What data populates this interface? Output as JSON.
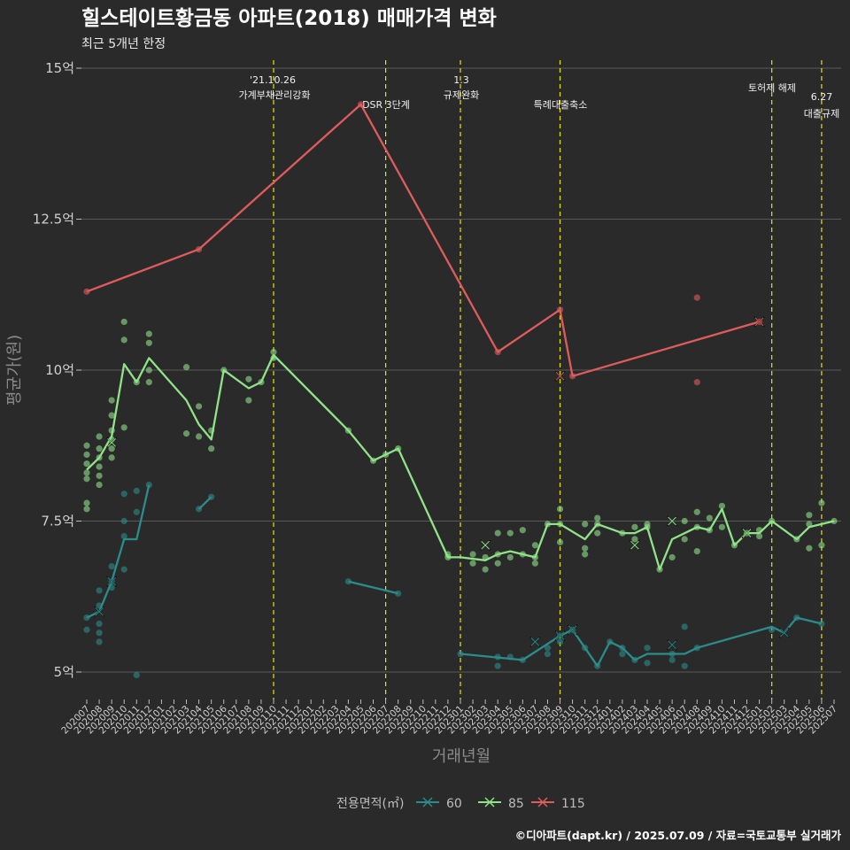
{
  "chart_data": {
    "type": "line",
    "title": "힐스테이트황금동 아파트(2018) 매매가격 변화",
    "subtitle": "최근 5개년 한정",
    "xlabel": "거래년월",
    "ylabel": "평균가(원)",
    "yticks": [
      "5억",
      "7.5억",
      "10억",
      "12.5억",
      "15억"
    ],
    "ylim": [
      4.6,
      15.1
    ],
    "grid": true,
    "legend_position": "bottom",
    "legend_title": "전용면적(㎡)",
    "caption": "©디아파트(dapt.kr) / 2025.07.09 / 자료=국토교통부 실거래가",
    "categories": [
      "202007",
      "202008",
      "202009",
      "202010",
      "202011",
      "202012",
      "202101",
      "202102",
      "202103",
      "202104",
      "202105",
      "202106",
      "202107",
      "202108",
      "202109",
      "202110",
      "202111",
      "202112",
      "202201",
      "202202",
      "202203",
      "202204",
      "202205",
      "202206",
      "202207",
      "202208",
      "202209",
      "202210",
      "202211",
      "202212",
      "202301",
      "202302",
      "202303",
      "202304",
      "202305",
      "202306",
      "202307",
      "202308",
      "202309",
      "202310",
      "202311",
      "202312",
      "202401",
      "202402",
      "202403",
      "202404",
      "202405",
      "202406",
      "202407",
      "202408",
      "202409",
      "202410",
      "202411",
      "202412",
      "202501",
      "202502",
      "202503",
      "202504",
      "202505",
      "202506",
      "202507"
    ],
    "annotations": [
      {
        "x": "202110",
        "lines": [
          "'21.10.26",
          "가계부채관리강화"
        ]
      },
      {
        "x": "202207",
        "lines": [
          "DSR 3단계"
        ]
      },
      {
        "x": "202301",
        "lines": [
          "1.3",
          "규제완화"
        ]
      },
      {
        "x": "202309",
        "lines": [
          "특례대출축소"
        ]
      },
      {
        "x": "202502",
        "lines": [
          "토허제 해제"
        ]
      },
      {
        "x": "202506",
        "lines": [
          "6.27",
          "대출규제"
        ]
      }
    ],
    "series": [
      {
        "name": "60",
        "color": "#2a8d8b",
        "line_segments": [
          [
            [
              "202007",
              5.9
            ],
            [
              "202008",
              6.0
            ],
            [
              "202009",
              6.5
            ],
            [
              "202010",
              7.2
            ],
            [
              "202011",
              7.2
            ],
            [
              "202012",
              8.1
            ]
          ],
          [
            [
              "202104",
              7.7
            ],
            [
              "202105",
              7.9
            ]
          ],
          [
            [
              "202204",
              6.5
            ],
            [
              "202208",
              6.3
            ]
          ],
          [
            [
              "202301",
              5.3
            ],
            [
              "202306",
              5.2
            ],
            [
              "202309",
              5.6
            ],
            [
              "202310",
              5.7
            ],
            [
              "202311",
              5.4
            ],
            [
              "202312",
              5.1
            ],
            [
              "202401",
              5.5
            ],
            [
              "202402",
              5.4
            ],
            [
              "202403",
              5.2
            ],
            [
              "202404",
              5.3
            ],
            [
              "202406",
              5.3
            ],
            [
              "202407",
              5.3
            ],
            [
              "202408",
              5.4
            ],
            [
              "202502",
              5.75
            ],
            [
              "202503",
              5.65
            ],
            [
              "202504",
              5.9
            ],
            [
              "202506",
              5.8
            ]
          ]
        ],
        "points": [
          [
            "202007",
            5.9
          ],
          [
            "202007",
            5.7
          ],
          [
            "202008",
            6.35
          ],
          [
            "202008",
            6.1
          ],
          [
            "202008",
            5.8
          ],
          [
            "202008",
            5.65
          ],
          [
            "202008",
            5.5
          ],
          [
            "202009",
            6.75
          ],
          [
            "202009",
            6.5
          ],
          [
            "202009",
            6.4
          ],
          [
            "202010",
            7.25
          ],
          [
            "202010",
            6.7
          ],
          [
            "202010",
            7.95
          ],
          [
            "202010",
            7.5
          ],
          [
            "202011",
            8.0
          ],
          [
            "202011",
            7.65
          ],
          [
            "202011",
            4.95
          ],
          [
            "202012",
            8.1
          ],
          [
            "202104",
            7.7
          ],
          [
            "202105",
            7.9
          ],
          [
            "202204",
            6.5
          ],
          [
            "202208",
            6.3
          ],
          [
            "202301",
            5.3
          ],
          [
            "202304",
            5.1
          ],
          [
            "202304",
            5.25
          ],
          [
            "202305",
            5.25
          ],
          [
            "202306",
            5.2
          ],
          [
            "202308",
            5.3
          ],
          [
            "202308",
            5.4
          ],
          [
            "202309",
            5.5
          ],
          [
            "202309",
            5.6
          ],
          [
            "202310",
            5.7
          ],
          [
            "202311",
            5.4
          ],
          [
            "202312",
            5.1
          ],
          [
            "202401",
            5.5
          ],
          [
            "202402",
            5.4
          ],
          [
            "202402",
            5.3
          ],
          [
            "202403",
            5.2
          ],
          [
            "202404",
            5.4
          ],
          [
            "202404",
            5.15
          ],
          [
            "202406",
            5.3
          ],
          [
            "202406",
            5.2
          ],
          [
            "202407",
            5.75
          ],
          [
            "202407",
            5.1
          ],
          [
            "202408",
            5.4
          ],
          [
            "202502",
            5.7
          ],
          [
            "202504",
            5.9
          ],
          [
            "202506",
            5.8
          ]
        ],
        "crosses": [
          [
            "202008",
            6.0
          ],
          [
            "202009",
            6.5
          ],
          [
            "202307",
            5.5
          ],
          [
            "202309",
            5.6
          ],
          [
            "202310",
            5.7
          ],
          [
            "202406",
            5.45
          ],
          [
            "202503",
            5.65
          ]
        ]
      },
      {
        "name": "85",
        "color": "#8fe388",
        "line_segments": [
          [
            [
              "202007",
              8.35
            ],
            [
              "202008",
              8.55
            ],
            [
              "202009",
              8.9
            ],
            [
              "202010",
              10.1
            ],
            [
              "202011",
              9.8
            ],
            [
              "202012",
              10.2
            ],
            [
              "202103",
              9.5
            ],
            [
              "202104",
              9.1
            ],
            [
              "202105",
              8.85
            ],
            [
              "202106",
              10.0
            ],
            [
              "202108",
              9.7
            ],
            [
              "202109",
              9.8
            ],
            [
              "202110",
              10.25
            ],
            [
              "202204",
              9.0
            ],
            [
              "202206",
              8.5
            ],
            [
              "202207",
              8.6
            ],
            [
              "202208",
              8.7
            ],
            [
              "202212",
              6.9
            ],
            [
              "202301",
              6.9
            ],
            [
              "202303",
              6.85
            ],
            [
              "202304",
              6.95
            ],
            [
              "202305",
              7.0
            ],
            [
              "202306",
              6.95
            ],
            [
              "202307",
              6.9
            ],
            [
              "202308",
              7.45
            ],
            [
              "202309",
              7.45
            ],
            [
              "202311",
              7.2
            ],
            [
              "202312",
              7.45
            ],
            [
              "202402",
              7.3
            ],
            [
              "202403",
              7.3
            ],
            [
              "202404",
              7.4
            ],
            [
              "202405",
              6.7
            ],
            [
              "202406",
              7.2
            ],
            [
              "202408",
              7.4
            ],
            [
              "202409",
              7.35
            ],
            [
              "202410",
              7.7
            ],
            [
              "202411",
              7.1
            ],
            [
              "202412",
              7.3
            ],
            [
              "202501",
              7.3
            ],
            [
              "202502",
              7.5
            ],
            [
              "202504",
              7.2
            ],
            [
              "202505",
              7.4
            ],
            [
              "202507",
              7.5
            ]
          ]
        ],
        "points": [
          [
            "202007",
            8.75
          ],
          [
            "202007",
            8.6
          ],
          [
            "202007",
            8.45
          ],
          [
            "202007",
            8.3
          ],
          [
            "202007",
            8.2
          ],
          [
            "202007",
            7.8
          ],
          [
            "202007",
            7.7
          ],
          [
            "202008",
            8.9
          ],
          [
            "202008",
            8.7
          ],
          [
            "202008",
            8.55
          ],
          [
            "202008",
            8.4
          ],
          [
            "202008",
            8.25
          ],
          [
            "202008",
            8.1
          ],
          [
            "202009",
            9.5
          ],
          [
            "202009",
            9.25
          ],
          [
            "202009",
            9.0
          ],
          [
            "202009",
            8.85
          ],
          [
            "202009",
            8.7
          ],
          [
            "202009",
            8.55
          ],
          [
            "202010",
            10.8
          ],
          [
            "202010",
            10.5
          ],
          [
            "202010",
            9.05
          ],
          [
            "202011",
            9.8
          ],
          [
            "202012",
            10.6
          ],
          [
            "202012",
            10.45
          ],
          [
            "202012",
            10.0
          ],
          [
            "202012",
            9.8
          ],
          [
            "202103",
            10.05
          ],
          [
            "202103",
            8.95
          ],
          [
            "202104",
            9.4
          ],
          [
            "202104",
            8.9
          ],
          [
            "202105",
            9.0
          ],
          [
            "202105",
            8.7
          ],
          [
            "202106",
            10.0
          ],
          [
            "202108",
            9.85
          ],
          [
            "202108",
            9.5
          ],
          [
            "202109",
            9.8
          ],
          [
            "202110",
            10.3
          ],
          [
            "202110",
            10.2
          ],
          [
            "202204",
            9.0
          ],
          [
            "202206",
            8.5
          ],
          [
            "202207",
            8.6
          ],
          [
            "202208",
            8.7
          ],
          [
            "202212",
            6.95
          ],
          [
            "202212",
            6.9
          ],
          [
            "202302",
            6.95
          ],
          [
            "202302",
            6.8
          ],
          [
            "202303",
            6.9
          ],
          [
            "202303",
            6.7
          ],
          [
            "202304",
            7.3
          ],
          [
            "202304",
            6.95
          ],
          [
            "202304",
            6.8
          ],
          [
            "202305",
            7.3
          ],
          [
            "202305",
            6.9
          ],
          [
            "202306",
            7.35
          ],
          [
            "202306",
            6.95
          ],
          [
            "202307",
            7.1
          ],
          [
            "202307",
            6.9
          ],
          [
            "202307",
            6.8
          ],
          [
            "202308",
            7.45
          ],
          [
            "202309",
            7.7
          ],
          [
            "202309",
            7.45
          ],
          [
            "202309",
            7.15
          ],
          [
            "202311",
            7.45
          ],
          [
            "202311",
            7.05
          ],
          [
            "202311",
            6.95
          ],
          [
            "202312",
            7.55
          ],
          [
            "202312",
            7.45
          ],
          [
            "202312",
            7.3
          ],
          [
            "202402",
            7.3
          ],
          [
            "202403",
            7.4
          ],
          [
            "202403",
            7.2
          ],
          [
            "202404",
            7.45
          ],
          [
            "202404",
            7.4
          ],
          [
            "202405",
            6.7
          ],
          [
            "202406",
            6.9
          ],
          [
            "202407",
            7.5
          ],
          [
            "202407",
            7.2
          ],
          [
            "202408",
            7.65
          ],
          [
            "202408",
            7.4
          ],
          [
            "202408",
            7.0
          ],
          [
            "202409",
            7.55
          ],
          [
            "202409",
            7.35
          ],
          [
            "202410",
            7.75
          ],
          [
            "202410",
            7.4
          ],
          [
            "202411",
            7.1
          ],
          [
            "202412",
            7.3
          ],
          [
            "202501",
            7.35
          ],
          [
            "202501",
            7.25
          ],
          [
            "202502",
            7.5
          ],
          [
            "202504",
            7.2
          ],
          [
            "202505",
            7.6
          ],
          [
            "202505",
            7.45
          ],
          [
            "202505",
            7.05
          ],
          [
            "202506",
            7.8
          ],
          [
            "202506",
            7.1
          ],
          [
            "202507",
            7.5
          ]
        ],
        "crosses": [
          [
            "202009",
            8.8
          ],
          [
            "202303",
            7.1
          ],
          [
            "202403",
            7.1
          ],
          [
            "202406",
            7.5
          ],
          [
            "202412",
            7.3
          ]
        ]
      },
      {
        "name": "115",
        "color": "#e05c5c",
        "line_segments": [
          [
            [
              "202007",
              11.3
            ],
            [
              "202104",
              12.0
            ],
            [
              "202205",
              14.4
            ],
            [
              "202304",
              10.3
            ],
            [
              "202309",
              11.0
            ],
            [
              "202310",
              9.9
            ],
            [
              "202501",
              10.8
            ]
          ]
        ],
        "points": [
          [
            "202007",
            11.3
          ],
          [
            "202104",
            12.0
          ],
          [
            "202205",
            14.4
          ],
          [
            "202304",
            10.3
          ],
          [
            "202309",
            11.0
          ],
          [
            "202310",
            9.9
          ],
          [
            "202408",
            11.2
          ],
          [
            "202408",
            9.8
          ],
          [
            "202501",
            10.8
          ]
        ],
        "crosses": [
          [
            "202309",
            9.9
          ],
          [
            "202501",
            10.8
          ]
        ]
      }
    ]
  }
}
